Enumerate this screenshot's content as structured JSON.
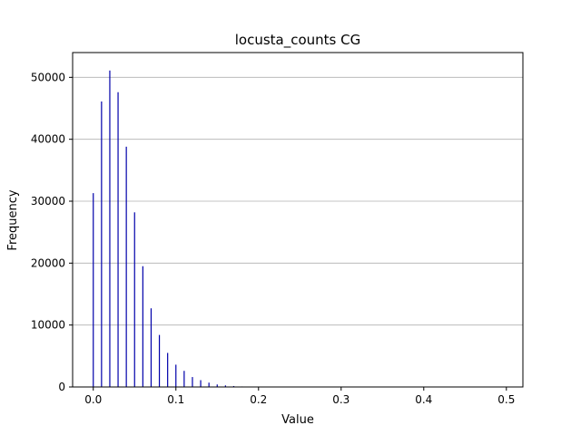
{
  "chart_data": {
    "type": "bar",
    "title": "locusta_counts CG",
    "xlabel": "Value",
    "ylabel": "Frequency",
    "xlim": [
      -0.025,
      0.52
    ],
    "ylim": [
      0,
      54000
    ],
    "grid": "y",
    "bar_color": "#0000aa",
    "x_ticks": [
      0.0,
      0.1,
      0.2,
      0.3,
      0.4,
      0.5
    ],
    "x_tick_labels": [
      "0.0",
      "0.1",
      "0.2",
      "0.3",
      "0.4",
      "0.5"
    ],
    "y_ticks": [
      0,
      10000,
      20000,
      30000,
      40000,
      50000
    ],
    "y_tick_labels": [
      "0",
      "10000",
      "20000",
      "30000",
      "40000",
      "50000"
    ],
    "x": [
      0.0,
      0.01,
      0.02,
      0.03,
      0.04,
      0.05,
      0.06,
      0.07,
      0.08,
      0.09,
      0.1,
      0.11,
      0.12,
      0.13,
      0.14,
      0.15,
      0.16,
      0.17,
      0.18,
      0.19,
      0.2
    ],
    "values": [
      31300,
      46100,
      51100,
      47600,
      38800,
      28200,
      19500,
      12700,
      8400,
      5500,
      3600,
      2600,
      1600,
      1100,
      700,
      400,
      250,
      150,
      80,
      40,
      20
    ]
  }
}
